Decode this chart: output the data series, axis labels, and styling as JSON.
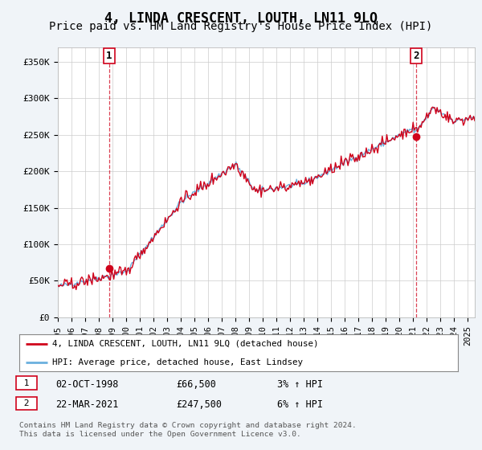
{
  "title": "4, LINDA CRESCENT, LOUTH, LN11 9LQ",
  "subtitle": "Price paid vs. HM Land Registry's House Price Index (HPI)",
  "title_fontsize": 12,
  "subtitle_fontsize": 10,
  "ylabel_ticks": [
    "£0",
    "£50K",
    "£100K",
    "£150K",
    "£200K",
    "£250K",
    "£300K",
    "£350K"
  ],
  "ytick_values": [
    0,
    50000,
    100000,
    150000,
    200000,
    250000,
    300000,
    350000
  ],
  "ylim": [
    0,
    370000
  ],
  "xlim_start": 1995.0,
  "xlim_end": 2025.5,
  "hpi_color": "#6ab0de",
  "price_color": "#d0021b",
  "dashed_line_color": "#d0021b",
  "background_color": "#f0f4f8",
  "plot_bg_color": "#ffffff",
  "legend_label_price": "4, LINDA CRESCENT, LOUTH, LN11 9LQ (detached house)",
  "legend_label_hpi": "HPI: Average price, detached house, East Lindsey",
  "sale1_date": "02-OCT-1998",
  "sale1_price": "£66,500",
  "sale1_hpi": "3% ↑ HPI",
  "sale1_x": 1998.75,
  "sale1_y": 66500,
  "sale1_label": "1",
  "sale2_date": "22-MAR-2021",
  "sale2_price": "£247,500",
  "sale2_hpi": "6% ↑ HPI",
  "sale2_x": 2021.22,
  "sale2_y": 247500,
  "sale2_label": "2",
  "footer": "Contains HM Land Registry data © Crown copyright and database right 2024.\nThis data is licensed under the Open Government Licence v3.0.",
  "xtick_years": [
    1995,
    1996,
    1997,
    1998,
    1999,
    2000,
    2001,
    2002,
    2003,
    2004,
    2005,
    2006,
    2007,
    2008,
    2009,
    2010,
    2011,
    2012,
    2013,
    2014,
    2015,
    2016,
    2017,
    2018,
    2019,
    2020,
    2021,
    2022,
    2023,
    2024,
    2025
  ]
}
